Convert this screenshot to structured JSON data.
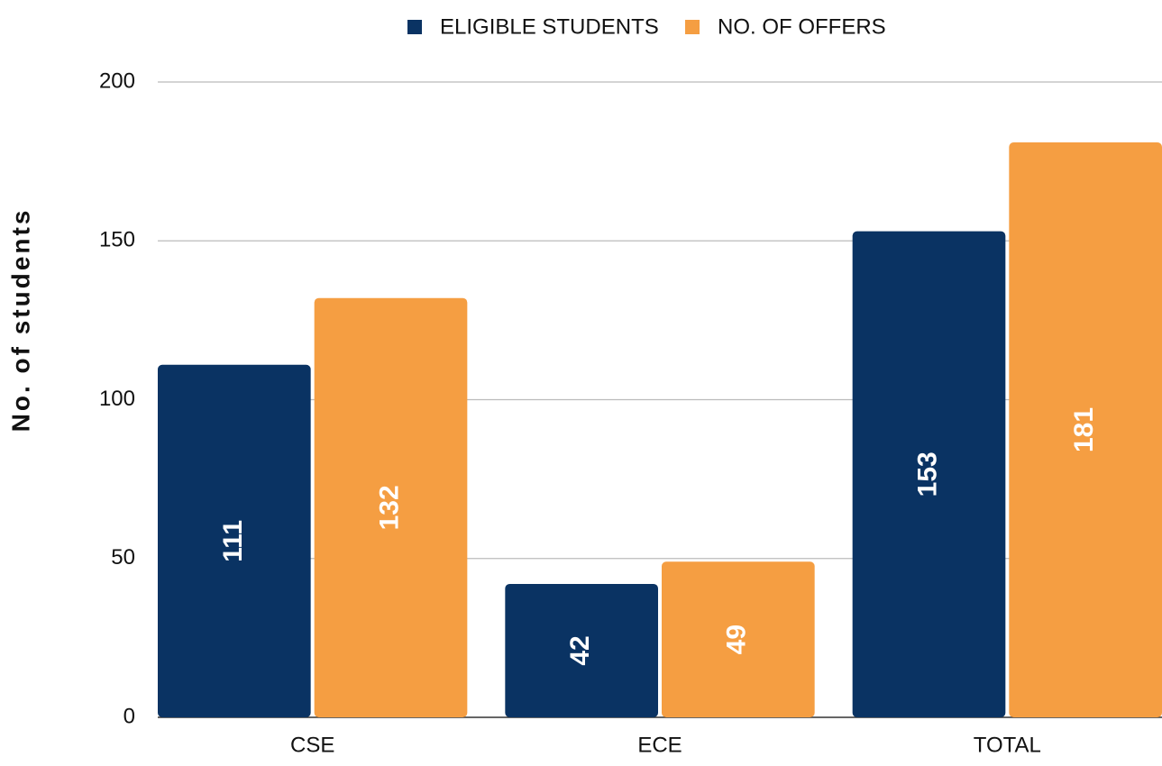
{
  "chart_data": {
    "type": "bar",
    "y_label": "No. of students",
    "categories": [
      "CSE",
      "ECE",
      "TOTAL"
    ],
    "series": [
      {
        "name": "ELIGIBLE STUDENTS",
        "color": "#0a3363",
        "values": [
          111,
          42,
          153
        ]
      },
      {
        "name": "NO. OF OFFERS",
        "color": "#f59e42",
        "values": [
          132,
          49,
          181
        ]
      }
    ],
    "ylim": [
      0,
      200
    ],
    "yticks": [
      0,
      50,
      100,
      150,
      200
    ],
    "grid": true,
    "legend": "top"
  }
}
